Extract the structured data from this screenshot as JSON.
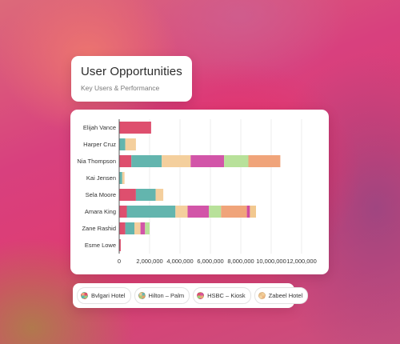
{
  "header": {
    "title": "User Opportunities",
    "subtitle": "Key Users & Performance"
  },
  "legend": {
    "items": [
      {
        "label": "Bvlgari Hotel",
        "colors": [
          "#e0506e",
          "#a3c97a",
          "#5bb7b0",
          "#f2a97b"
        ]
      },
      {
        "label": "Hilton – Palm",
        "colors": [
          "#6ab8b0",
          "#e3a36d",
          "#a5cf7c",
          "#f0c892"
        ]
      },
      {
        "label": "HSBC – Kiosk",
        "colors": [
          "#d9559d",
          "#f0a277",
          "#9fd07c",
          "#e0506e"
        ]
      },
      {
        "label": "Zabeel Hotel",
        "colors": [
          "#f3cf98",
          "#efb783",
          "#f3d5a2",
          "#e9c08c"
        ]
      }
    ]
  },
  "chart_data": {
    "type": "bar",
    "orientation": "horizontal",
    "stacked": true,
    "categories": [
      "Elijah Vance",
      "Harper Cruz",
      "Nia Thompson",
      "Kai Jensen",
      "Sela Moore",
      "Amara King",
      "Zane Rashid",
      "Esme Lowe"
    ],
    "xticks": [
      "0",
      "2,000,000",
      "4,000,000",
      "6,000,000",
      "8,000,000",
      "10,000,000",
      "12,000,000"
    ],
    "xlim": [
      0,
      12000000
    ],
    "grid": true,
    "segments": [
      {
        "color": "#de4f6e",
        "values": [
          2100000,
          0,
          800000,
          0,
          1100000,
          500000,
          400000,
          100000
        ]
      },
      {
        "color": "#63b5ae",
        "values": [
          0,
          400000,
          2000000,
          200000,
          1300000,
          3200000,
          600000,
          0
        ]
      },
      {
        "color": "#f4cf9d",
        "values": [
          0,
          700000,
          1900000,
          150000,
          500000,
          800000,
          400000,
          0
        ]
      },
      {
        "color": "#d255a8",
        "values": [
          0,
          0,
          2200000,
          0,
          0,
          1400000,
          300000,
          0
        ]
      },
      {
        "color": "#b8e19a",
        "values": [
          0,
          0,
          1600000,
          0,
          0,
          800000,
          300000,
          0
        ]
      },
      {
        "color": "#f0a47a",
        "values": [
          0,
          0,
          2100000,
          0,
          0,
          1700000,
          0,
          0
        ]
      },
      {
        "color": "#d04aa0",
        "values": [
          0,
          0,
          0,
          0,
          0,
          200000,
          0,
          0
        ]
      },
      {
        "color": "#f2c88f",
        "values": [
          0,
          0,
          0,
          0,
          0,
          400000,
          0,
          0
        ]
      }
    ]
  }
}
